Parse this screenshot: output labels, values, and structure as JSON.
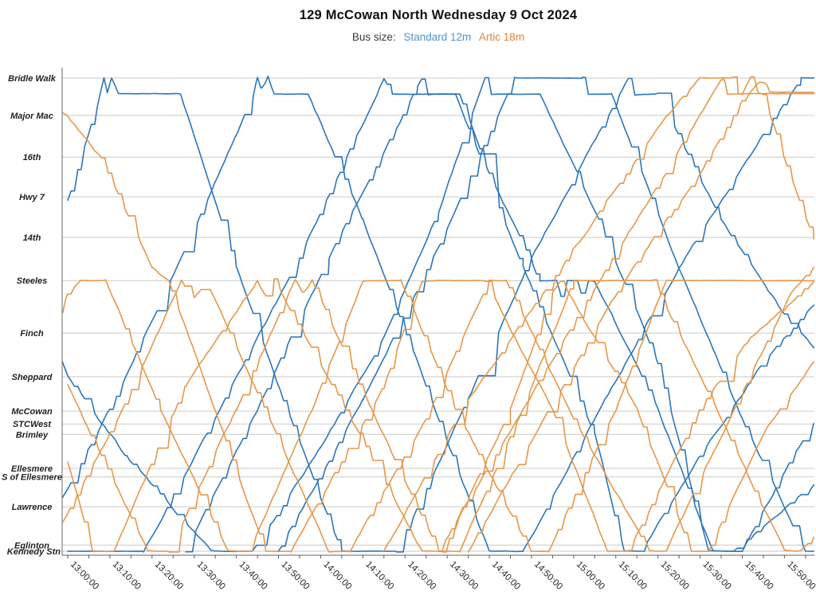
{
  "header": {
    "title": "129 McCowan North Wednesday 9 Oct 2024",
    "subtitle_prefix": "Bus size:"
  },
  "legend": [
    {
      "id": "standard",
      "label": "Standard 12m",
      "color": "#4f94cd"
    },
    {
      "id": "artic",
      "label": "Artic 18m",
      "color": "#e0813c"
    }
  ],
  "chart_data": {
    "type": "line",
    "title": "129 McCowan North Wednesday 9 Oct 2024",
    "subtitle": "Bus size: Standard 12m  Artic 18m",
    "grid": true,
    "legend_position": "top",
    "x_axis": {
      "unit": "time-of-day",
      "start": "13:00:00",
      "visible_end": "15:57:00",
      "tick_interval_minutes": 10,
      "minor_tick_minutes": 5,
      "tick_labels": [
        "13:00:00",
        "13:10:00",
        "13:20:00",
        "13:30:00",
        "13:40:00",
        "13:50:00",
        "14:00:00",
        "14:10:00",
        "14:20:00",
        "14:30:00",
        "14:40:00",
        "14:50:00",
        "15:00:00",
        "15:10:00",
        "15:20:00",
        "15:30:00",
        "15:40:00",
        "15:50:00"
      ]
    },
    "y_axis": {
      "unit": "route-position-percent",
      "stops": [
        {
          "name": "Kennedy Stn",
          "pos": 0
        },
        {
          "name": "Eglinton",
          "pos": 1.3
        },
        {
          "name": "Lawrence",
          "pos": 9.4
        },
        {
          "name": "S of Ellesmere",
          "pos": 15.7
        },
        {
          "name": "Ellesmere",
          "pos": 17.5
        },
        {
          "name": "Brimley",
          "pos": 24.7
        },
        {
          "name": "STCWest",
          "pos": 26.9
        },
        {
          "name": "McCowan",
          "pos": 29.6
        },
        {
          "name": "Sheppard",
          "pos": 36.9
        },
        {
          "name": "Finch",
          "pos": 46.1
        },
        {
          "name": "Steeles",
          "pos": 57.2
        },
        {
          "name": "14th",
          "pos": 66.3
        },
        {
          "name": "Hwy 7",
          "pos": 74.9
        },
        {
          "name": "16th",
          "pos": 83.3
        },
        {
          "name": "Major Mac",
          "pos": 92.1
        },
        {
          "name": "Bridle Walk",
          "pos": 100
        }
      ]
    },
    "series": [
      {
        "name": "Standard 12m",
        "bus_size": "12m standard",
        "color": "#2b76b9",
        "trips": [
          {
            "points": [
              [
                -20,
                88
              ],
              [
                0,
                37
              ],
              [
                14,
                20
              ],
              [
                34,
                0
              ],
              [
                44,
                0
              ],
              [
                60,
                22
              ],
              [
                75,
                45
              ],
              [
                88,
                72
              ],
              [
                99,
                100
              ],
              [
                100.5,
                96.6
              ],
              [
                112,
                96.6
              ],
              [
                126,
                70
              ],
              [
                140,
                40
              ],
              [
                152,
                0
              ],
              [
                158,
                0
              ],
              [
                170,
                9
              ],
              [
                177,
                14
              ]
            ]
          },
          {
            "points": [
              [
                0,
                74
              ],
              [
                7,
                94
              ],
              [
                8.6,
                100
              ],
              [
                9.4,
                96.8
              ],
              [
                10.4,
                100
              ],
              [
                12,
                96.7
              ],
              [
                26.8,
                96.7
              ],
              [
                40,
                60
              ],
              [
                52,
                30
              ],
              [
                65,
                0
              ],
              [
                78,
                0
              ],
              [
                95,
                32
              ],
              [
                110,
                62
              ],
              [
                133,
                100
              ],
              [
                134.5,
                96.6
              ],
              [
                140,
                96.6
              ],
              [
                155,
                70
              ],
              [
                170,
                50
              ],
              [
                177,
                43
              ]
            ]
          },
          {
            "points": [
              [
                50,
                0
              ],
              [
                70,
                32
              ],
              [
                90,
                68
              ],
              [
                106,
                100
              ],
              [
                122,
                100
              ],
              [
                123.5,
                96.6
              ],
              [
                129,
                96.6
              ],
              [
                145,
                60
              ],
              [
                160,
                28
              ],
              [
                175,
                0
              ],
              [
                177,
                0
              ]
            ]
          },
          {
            "points": [
              [
                -8,
                0
              ],
              [
                10,
                30
              ],
              [
                30,
                68
              ],
              [
                44,
                96
              ],
              [
                45,
                100
              ],
              [
                46,
                97
              ],
              [
                47.5,
                100
              ],
              [
                49,
                96.6
              ],
              [
                57,
                96.6
              ],
              [
                70,
                70
              ],
              [
                85,
                35
              ],
              [
                100,
                0
              ],
              [
                108,
                0
              ],
              [
                125,
                28
              ],
              [
                145,
                60
              ],
              [
                165,
                88
              ],
              [
                174,
                100
              ],
              [
                177,
                100
              ]
            ]
          },
          {
            "points": [
              [
                0,
                0
              ],
              [
                18,
                0
              ],
              [
                35,
                28
              ],
              [
                55,
                62
              ],
              [
                74,
                98
              ],
              [
                75,
                100
              ],
              [
                77,
                96.6
              ],
              [
                92,
                96.6
              ],
              [
                108,
                60
              ],
              [
                125,
                25
              ],
              [
                132,
                0
              ],
              [
                136,
                0
              ],
              [
                150,
                20
              ],
              [
                165,
                40
              ],
              [
                177,
                52
              ]
            ]
          },
          {
            "points": [
              [
                28,
                0
              ],
              [
                45,
                30
              ],
              [
                62,
                62
              ],
              [
                83,
                98
              ],
              [
                84,
                100
              ],
              [
                85.5,
                96.6
              ],
              [
                93,
                96.6
              ],
              [
                100,
                80
              ],
              [
                112,
                57.2
              ],
              [
                116,
                57.2
              ],
              [
                117,
                54
              ],
              [
                118.5,
                57.2
              ],
              [
                121,
                57.2
              ],
              [
                122,
                54
              ],
              [
                123.5,
                57.2
              ],
              [
                125,
                57.2
              ],
              [
                140,
                30
              ],
              [
                153,
                0
              ],
              [
                160,
                0
              ],
              [
                172,
                20
              ],
              [
                177,
                27
              ]
            ]
          }
        ]
      },
      {
        "name": "Artic 18m",
        "bus_size": "18m articulated",
        "color": "#e59848",
        "trips": [
          {
            "points": [
              [
                -14,
                100
              ],
              [
                0,
                92
              ],
              [
                8,
                83
              ],
              [
                20,
                60
              ],
              [
                24,
                57.2
              ],
              [
                47,
                0
              ],
              [
                53,
                0
              ],
              [
                75,
                35
              ],
              [
                84,
                57.2
              ],
              [
                99,
                57.2
              ],
              [
                115,
                30
              ],
              [
                128,
                0
              ],
              [
                133,
                0
              ],
              [
                150,
                30
              ],
              [
                162,
                45
              ],
              [
                177,
                57
              ]
            ]
          },
          {
            "points": [
              [
                0,
                19
              ],
              [
                6,
                0
              ],
              [
                11,
                0
              ],
              [
                28,
                35
              ],
              [
                45,
                57.2
              ],
              [
                47,
                54
              ],
              [
                49,
                57.2
              ],
              [
                66,
                30
              ],
              [
                84,
                0
              ],
              [
                89,
                0
              ],
              [
                105,
                30
              ],
              [
                115,
                55
              ],
              [
                117,
                57.2
              ],
              [
                135,
                30
              ],
              [
                148,
                0
              ],
              [
                152,
                0
              ],
              [
                165,
                25
              ],
              [
                177,
                40
              ]
            ]
          },
          {
            "points": [
              [
                -30,
                0
              ],
              [
                0,
                54
              ],
              [
                3,
                57.2
              ],
              [
                9,
                57.2
              ],
              [
                22,
                30
              ],
              [
                38,
                0
              ],
              [
                43,
                0
              ],
              [
                58,
                30
              ],
              [
                70,
                57.2
              ],
              [
                79,
                57.2
              ],
              [
                92,
                30
              ],
              [
                110,
                0
              ],
              [
                114,
                0
              ],
              [
                130,
                30
              ],
              [
                142,
                57.2
              ],
              [
                177,
                57.2
              ]
            ]
          },
          {
            "points": [
              [
                0,
                35
              ],
              [
                19,
                0
              ],
              [
                24,
                0
              ],
              [
                40,
                30
              ],
              [
                54,
                57.2
              ],
              [
                56,
                54
              ],
              [
                58,
                57.2
              ],
              [
                72,
                30
              ],
              [
                88,
                0
              ],
              [
                93,
                0
              ],
              [
                108,
                30
              ],
              [
                120,
                57.2
              ],
              [
                139,
                57.2
              ],
              [
                155,
                28
              ],
              [
                170,
                0
              ],
              [
                174,
                0
              ],
              [
                177,
                3
              ]
            ]
          },
          {
            "points": [
              [
                -5,
                0
              ],
              [
                12,
                28
              ],
              [
                27,
                57.2
              ],
              [
                30,
                53.5
              ],
              [
                33,
                57.2
              ],
              [
                48,
                28
              ],
              [
                62,
                0
              ],
              [
                67,
                0
              ],
              [
                85,
                28
              ],
              [
                100,
                57.2
              ],
              [
                104,
                57.2
              ],
              [
                120,
                28
              ],
              [
                138,
                0
              ],
              [
                142,
                0
              ],
              [
                158,
                30
              ],
              [
                172,
                55
              ],
              [
                177,
                60
              ]
            ]
          },
          {
            "points": [
              [
                75,
                0
              ],
              [
                95,
                32
              ],
              [
                115,
                57.2
              ],
              [
                135,
                83
              ],
              [
                142,
                92
              ],
              [
                150,
                100
              ],
              [
                158,
                100
              ],
              [
                159,
                96.7
              ],
              [
                165,
                96.7
              ],
              [
                172,
                78
              ],
              [
                177,
                66
              ]
            ]
          },
          {
            "points": [
              [
                88,
                0
              ],
              [
                108,
                30
              ],
              [
                126,
                57.2
              ],
              [
                142,
                80
              ],
              [
                155,
                100
              ],
              [
                156.5,
                96.7
              ],
              [
                160,
                96.7
              ],
              [
                162,
                100
              ],
              [
                164,
                96.7
              ],
              [
                177,
                96.7
              ]
            ]
          },
          {
            "points": [
              [
                95,
                0
              ],
              [
                113,
                28
              ],
              [
                132,
                57.2
              ],
              [
                150,
                80
              ],
              [
                160,
                95
              ],
              [
                165,
                100
              ],
              [
                166.5,
                97
              ],
              [
                177,
                97
              ]
            ]
          }
        ]
      }
    ]
  }
}
